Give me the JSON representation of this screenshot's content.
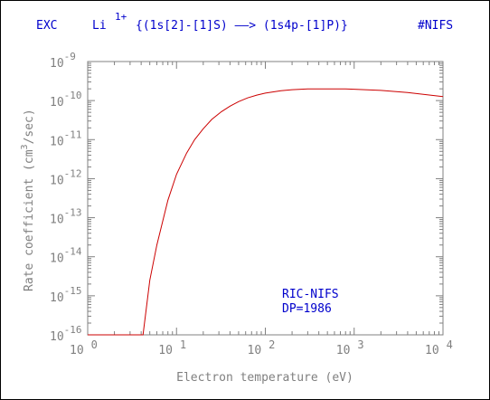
{
  "colors": {
    "title": "#0000cc",
    "axis_text": "#808080",
    "curve": "#cc0000",
    "annotation": "#0000cc"
  },
  "header": {
    "exc": "EXC",
    "ion": "Li",
    "charge": "1+",
    "transition": "{(1s[2]-[1]S) ——> (1s4p-[1]P)}",
    "tag": "#NIFS"
  },
  "chart_data": {
    "type": "line",
    "xscale": "log",
    "yscale": "log",
    "xlim": [
      1,
      10000
    ],
    "ylim": [
      1e-16,
      1e-09
    ],
    "xlabel": "Electron temperature (eV)",
    "ylabel_parts": [
      "Rate coefficient (cm",
      "3",
      "/sec)"
    ],
    "xtick_labels": [
      {
        "base": "10",
        "exp": "0"
      },
      {
        "base": "10",
        "exp": "1"
      },
      {
        "base": "10",
        "exp": "2"
      },
      {
        "base": "10",
        "exp": "3"
      },
      {
        "base": "10",
        "exp": "4"
      }
    ],
    "ytick_labels": [
      {
        "base": "10",
        "exp": "-9"
      },
      {
        "base": "10",
        "exp": "-10"
      },
      {
        "base": "10",
        "exp": "-11"
      },
      {
        "base": "10",
        "exp": "-12"
      },
      {
        "base": "10",
        "exp": "-13"
      },
      {
        "base": "10",
        "exp": "-14"
      },
      {
        "base": "10",
        "exp": "-15"
      },
      {
        "base": "10",
        "exp": "-16"
      }
    ],
    "series": [
      {
        "x": [
          1,
          2,
          3.3,
          4.2,
          5,
          6,
          8,
          10,
          13,
          16,
          20,
          25,
          32,
          40,
          50,
          63,
          80,
          100,
          150,
          200,
          300,
          400,
          600,
          800,
          1000,
          2000,
          4000,
          10000
        ],
        "y": [
          1e-16,
          1e-16,
          1e-16,
          1e-16,
          2.5e-15,
          2e-14,
          2.8e-13,
          1.3e-12,
          4.5e-12,
          1e-11,
          1.9e-11,
          3.3e-11,
          5.2e-11,
          7.2e-11,
          9.4e-11,
          1.17e-10,
          1.38e-10,
          1.55e-10,
          1.78e-10,
          1.9e-10,
          1.98e-10,
          2e-10,
          2e-10,
          1.98e-10,
          1.95e-10,
          1.82e-10,
          1.6e-10,
          1.26e-10
        ]
      }
    ],
    "annotation": [
      "RIC-NIFS",
      "DP=1986"
    ]
  }
}
